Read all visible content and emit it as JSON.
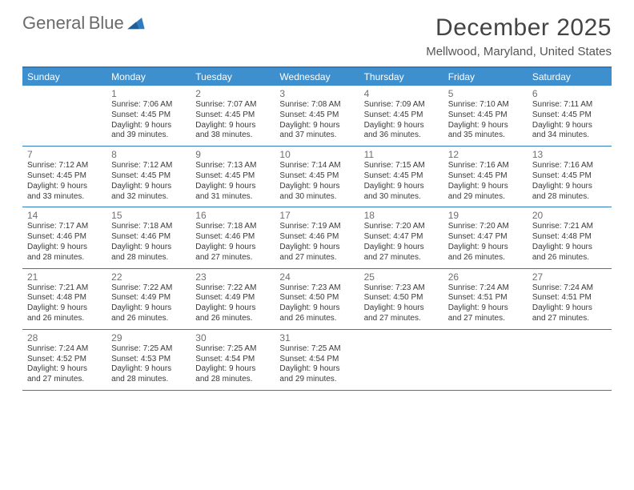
{
  "logo": {
    "word1": "General",
    "word2": "Blue"
  },
  "header": {
    "month_title": "December 2025",
    "location": "Mellwood, Maryland, United States"
  },
  "colors": {
    "brand_blue": "#2f7bbf",
    "header_blue": "#3d8fce",
    "text_gray": "#333333",
    "muted_gray": "#6f6f6f",
    "bg": "#ffffff"
  },
  "day_names": [
    "Sunday",
    "Monday",
    "Tuesday",
    "Wednesday",
    "Thursday",
    "Friday",
    "Saturday"
  ],
  "weeks": [
    [
      null,
      {
        "n": "1",
        "sr": "7:06 AM",
        "ss": "4:45 PM",
        "dl": "9 hours",
        "dm": "and 39 minutes."
      },
      {
        "n": "2",
        "sr": "7:07 AM",
        "ss": "4:45 PM",
        "dl": "9 hours",
        "dm": "and 38 minutes."
      },
      {
        "n": "3",
        "sr": "7:08 AM",
        "ss": "4:45 PM",
        "dl": "9 hours",
        "dm": "and 37 minutes."
      },
      {
        "n": "4",
        "sr": "7:09 AM",
        "ss": "4:45 PM",
        "dl": "9 hours",
        "dm": "and 36 minutes."
      },
      {
        "n": "5",
        "sr": "7:10 AM",
        "ss": "4:45 PM",
        "dl": "9 hours",
        "dm": "and 35 minutes."
      },
      {
        "n": "6",
        "sr": "7:11 AM",
        "ss": "4:45 PM",
        "dl": "9 hours",
        "dm": "and 34 minutes."
      }
    ],
    [
      {
        "n": "7",
        "sr": "7:12 AM",
        "ss": "4:45 PM",
        "dl": "9 hours",
        "dm": "and 33 minutes."
      },
      {
        "n": "8",
        "sr": "7:12 AM",
        "ss": "4:45 PM",
        "dl": "9 hours",
        "dm": "and 32 minutes."
      },
      {
        "n": "9",
        "sr": "7:13 AM",
        "ss": "4:45 PM",
        "dl": "9 hours",
        "dm": "and 31 minutes."
      },
      {
        "n": "10",
        "sr": "7:14 AM",
        "ss": "4:45 PM",
        "dl": "9 hours",
        "dm": "and 30 minutes."
      },
      {
        "n": "11",
        "sr": "7:15 AM",
        "ss": "4:45 PM",
        "dl": "9 hours",
        "dm": "and 30 minutes."
      },
      {
        "n": "12",
        "sr": "7:16 AM",
        "ss": "4:45 PM",
        "dl": "9 hours",
        "dm": "and 29 minutes."
      },
      {
        "n": "13",
        "sr": "7:16 AM",
        "ss": "4:45 PM",
        "dl": "9 hours",
        "dm": "and 28 minutes."
      }
    ],
    [
      {
        "n": "14",
        "sr": "7:17 AM",
        "ss": "4:46 PM",
        "dl": "9 hours",
        "dm": "and 28 minutes."
      },
      {
        "n": "15",
        "sr": "7:18 AM",
        "ss": "4:46 PM",
        "dl": "9 hours",
        "dm": "and 28 minutes."
      },
      {
        "n": "16",
        "sr": "7:18 AM",
        "ss": "4:46 PM",
        "dl": "9 hours",
        "dm": "and 27 minutes."
      },
      {
        "n": "17",
        "sr": "7:19 AM",
        "ss": "4:46 PM",
        "dl": "9 hours",
        "dm": "and 27 minutes."
      },
      {
        "n": "18",
        "sr": "7:20 AM",
        "ss": "4:47 PM",
        "dl": "9 hours",
        "dm": "and 27 minutes."
      },
      {
        "n": "19",
        "sr": "7:20 AM",
        "ss": "4:47 PM",
        "dl": "9 hours",
        "dm": "and 26 minutes."
      },
      {
        "n": "20",
        "sr": "7:21 AM",
        "ss": "4:48 PM",
        "dl": "9 hours",
        "dm": "and 26 minutes."
      }
    ],
    [
      {
        "n": "21",
        "sr": "7:21 AM",
        "ss": "4:48 PM",
        "dl": "9 hours",
        "dm": "and 26 minutes."
      },
      {
        "n": "22",
        "sr": "7:22 AM",
        "ss": "4:49 PM",
        "dl": "9 hours",
        "dm": "and 26 minutes."
      },
      {
        "n": "23",
        "sr": "7:22 AM",
        "ss": "4:49 PM",
        "dl": "9 hours",
        "dm": "and 26 minutes."
      },
      {
        "n": "24",
        "sr": "7:23 AM",
        "ss": "4:50 PM",
        "dl": "9 hours",
        "dm": "and 26 minutes."
      },
      {
        "n": "25",
        "sr": "7:23 AM",
        "ss": "4:50 PM",
        "dl": "9 hours",
        "dm": "and 27 minutes."
      },
      {
        "n": "26",
        "sr": "7:24 AM",
        "ss": "4:51 PM",
        "dl": "9 hours",
        "dm": "and 27 minutes."
      },
      {
        "n": "27",
        "sr": "7:24 AM",
        "ss": "4:51 PM",
        "dl": "9 hours",
        "dm": "and 27 minutes."
      }
    ],
    [
      {
        "n": "28",
        "sr": "7:24 AM",
        "ss": "4:52 PM",
        "dl": "9 hours",
        "dm": "and 27 minutes."
      },
      {
        "n": "29",
        "sr": "7:25 AM",
        "ss": "4:53 PM",
        "dl": "9 hours",
        "dm": "and 28 minutes."
      },
      {
        "n": "30",
        "sr": "7:25 AM",
        "ss": "4:54 PM",
        "dl": "9 hours",
        "dm": "and 28 minutes."
      },
      {
        "n": "31",
        "sr": "7:25 AM",
        "ss": "4:54 PM",
        "dl": "9 hours",
        "dm": "and 29 minutes."
      },
      null,
      null,
      null
    ]
  ],
  "labels": {
    "sunrise": "Sunrise:",
    "sunset": "Sunset:",
    "daylight": "Daylight:"
  }
}
